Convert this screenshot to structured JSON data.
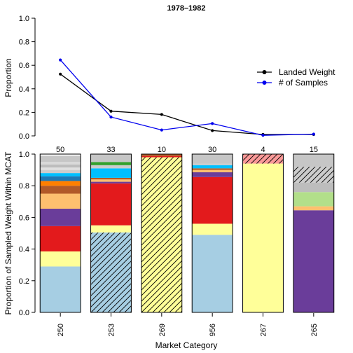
{
  "chart_data": [
    {
      "type": "line",
      "title": "1978–1982",
      "ylabel": "Proportion",
      "ylim": [
        0,
        1
      ],
      "yticks": [
        "0.0",
        "0.2",
        "0.4",
        "0.6",
        "0.8",
        "1.0"
      ],
      "legend_position": "right",
      "series": [
        {
          "name": "Landed Weight",
          "color": "#000000",
          "values": [
            0.525,
            0.21,
            0.182,
            0.045,
            0.012,
            0.012
          ]
        },
        {
          "name": "# of Samples",
          "color": "#0000ee",
          "values": [
            0.645,
            0.16,
            0.05,
            0.105,
            0.005,
            0.015
          ]
        }
      ]
    },
    {
      "type": "bar",
      "stacked": true,
      "xlabel": "Market Category",
      "ylabel": "Proportion of Sampled Weight Within MCAT",
      "ylim": [
        0,
        1
      ],
      "yticks": [
        "0.0",
        "0.2",
        "0.4",
        "0.6",
        "0.8",
        "1.0"
      ],
      "categories": [
        "250",
        "253",
        "269",
        "956",
        "267",
        "265"
      ],
      "sample_counts": [
        "50",
        "33",
        "10",
        "30",
        "4",
        "15"
      ],
      "bars": [
        {
          "segments": [
            {
              "value": 0.29,
              "color": "#a6cee3"
            },
            {
              "value": 0.095,
              "color": "#ffff99"
            },
            {
              "value": 0.16,
              "color": "#e31a1c"
            },
            {
              "value": 0.11,
              "color": "#6a3d9a"
            },
            {
              "value": 0.095,
              "color": "#fdbf6f"
            },
            {
              "value": 0.05,
              "color": "#b15928"
            },
            {
              "value": 0.03,
              "color": "#ff7f00"
            },
            {
              "value": 0.03,
              "color": "#1f78b4"
            },
            {
              "value": 0.02,
              "color": "#00bfff"
            },
            {
              "value": 0.02,
              "color": "#cccccc"
            },
            {
              "value": 0.015,
              "color": "#e0e0e0"
            },
            {
              "value": 0.02,
              "color": "#bdbdbd"
            },
            {
              "value": 0.015,
              "color": "#d9d9d9"
            },
            {
              "value": 0.04,
              "color": "#c6c6c6"
            }
          ]
        },
        {
          "segments": [
            {
              "value": 0.505,
              "color": "#a6cee3",
              "hatch": true
            },
            {
              "value": 0.045,
              "color": "#ffff99"
            },
            {
              "value": 0.265,
              "color": "#e31a1c"
            },
            {
              "value": 0.01,
              "color": "#6a3d9a"
            },
            {
              "value": 0.015,
              "color": "#fdbf6f"
            },
            {
              "value": 0.01,
              "color": "#b15928"
            },
            {
              "value": 0.06,
              "color": "#00bfff"
            },
            {
              "value": 0.02,
              "color": "#cccccc"
            },
            {
              "value": 0.02,
              "color": "#33a02c"
            },
            {
              "value": 0.05,
              "color": "#c6c6c6"
            }
          ]
        },
        {
          "segments": [
            {
              "value": 0.98,
              "color": "#ffff99",
              "hatch": true
            },
            {
              "value": 0.007,
              "color": "#e31a1c"
            },
            {
              "value": 0.013,
              "color": "#b15928"
            }
          ]
        },
        {
          "segments": [
            {
              "value": 0.49,
              "color": "#a6cee3"
            },
            {
              "value": 0.07,
              "color": "#ffff99"
            },
            {
              "value": 0.295,
              "color": "#e31a1c"
            },
            {
              "value": 0.03,
              "color": "#6a3d9a"
            },
            {
              "value": 0.015,
              "color": "#fdbf6f"
            },
            {
              "value": 0.01,
              "color": "#b15928"
            },
            {
              "value": 0.02,
              "color": "#00bfff"
            },
            {
              "value": 0.01,
              "color": "#cccccc"
            },
            {
              "value": 0.06,
              "color": "#c6c6c6"
            }
          ]
        },
        {
          "segments": [
            {
              "value": 0.94,
              "color": "#ffff99"
            },
            {
              "value": 0.06,
              "color": "#fb9a99",
              "hatch": true
            }
          ]
        },
        {
          "segments": [
            {
              "value": 0.645,
              "color": "#6a3d9a"
            },
            {
              "value": 0.025,
              "color": "#fdbf6f"
            },
            {
              "value": 0.09,
              "color": "#b2df8a"
            },
            {
              "value": 0.06,
              "color": "#bdbdbd"
            },
            {
              "value": 0.1,
              "color": "#cccccc",
              "hatch": true
            },
            {
              "value": 0.08,
              "color": "#c6c6c6"
            }
          ]
        }
      ]
    }
  ]
}
